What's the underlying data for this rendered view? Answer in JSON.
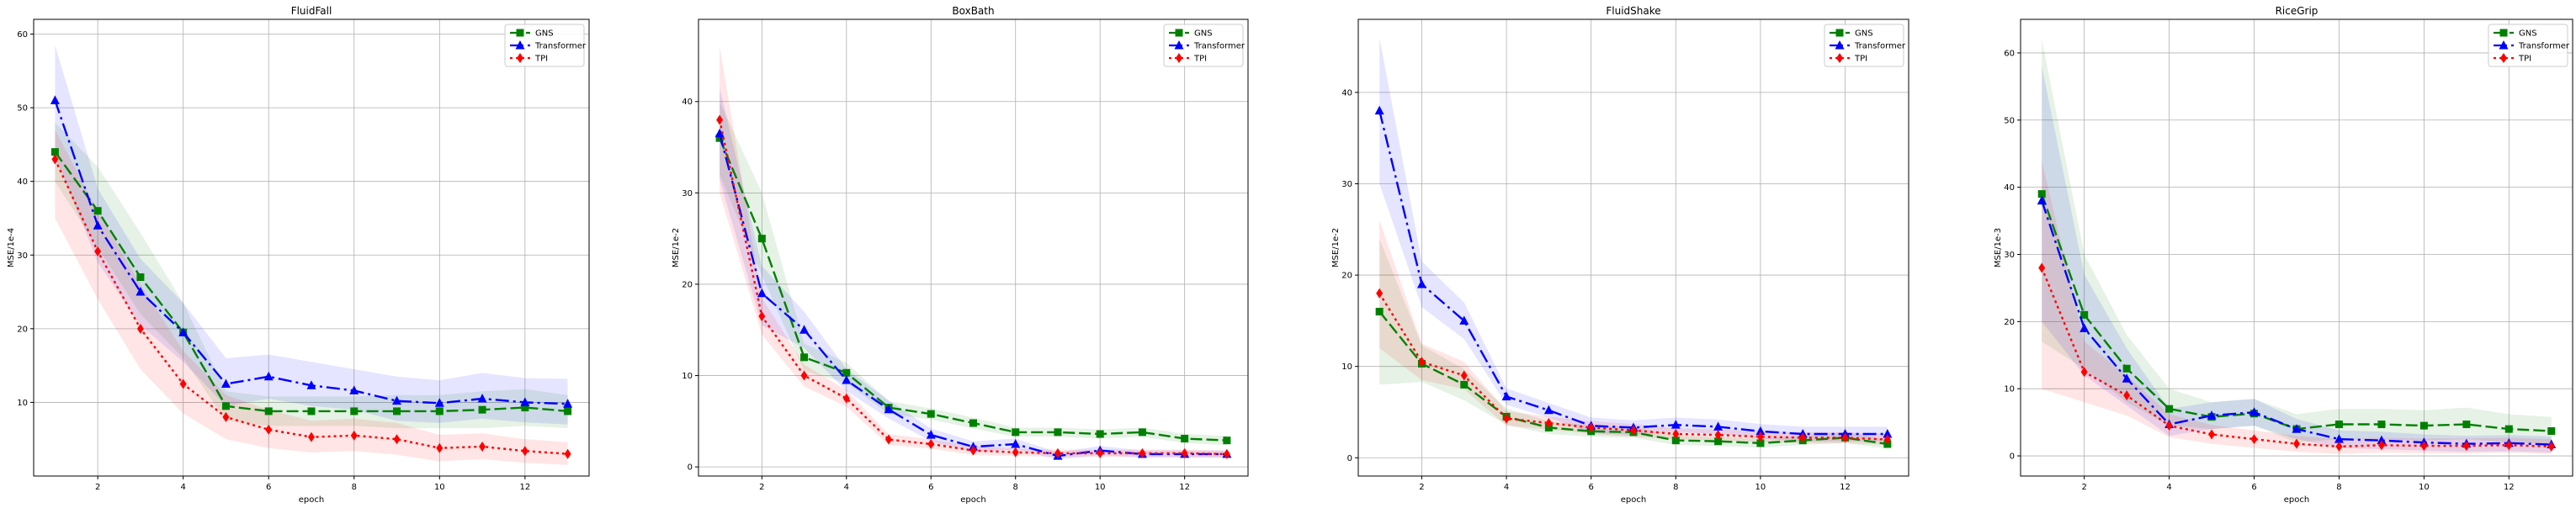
{
  "chart_data": [
    {
      "type": "line",
      "title": "FluidFall",
      "xlabel": "epoch",
      "ylabel": "MSE/1e-4",
      "xlim": [
        0.5,
        13.5
      ],
      "ylim": [
        0,
        62
      ],
      "xticks": [
        2,
        4,
        6,
        8,
        10,
        12
      ],
      "yticks": [
        10,
        20,
        30,
        40,
        50,
        60
      ],
      "grid": true,
      "legend": "top-right",
      "x": [
        1,
        2,
        3,
        4,
        5,
        6,
        7,
        8,
        9,
        10,
        11,
        12,
        13
      ],
      "series": [
        {
          "name": "GNS",
          "color": "#008000",
          "marker": "square",
          "dash": "dashed",
          "values": [
            44.0,
            36.0,
            27.0,
            19.5,
            9.5,
            8.8,
            8.8,
            8.8,
            8.8,
            8.8,
            9.0,
            9.3,
            8.8
          ],
          "lower": [
            40.0,
            31.0,
            22.0,
            16.0,
            7.5,
            6.8,
            6.8,
            6.8,
            6.5,
            6.5,
            6.5,
            6.8,
            6.5
          ],
          "upper": [
            48.0,
            42.0,
            33.0,
            23.5,
            11.5,
            10.8,
            10.8,
            10.8,
            11.0,
            11.0,
            11.5,
            11.8,
            11.0
          ]
        },
        {
          "name": "Transformer",
          "color": "#0000ff",
          "marker": "triangle",
          "dash": "dashdot",
          "values": [
            51.0,
            34.0,
            25.0,
            19.5,
            12.5,
            13.5,
            12.3,
            11.6,
            10.2,
            9.9,
            10.5,
            10.0,
            9.8
          ],
          "lower": [
            43.5,
            29.0,
            20.5,
            15.5,
            9.5,
            10.5,
            9.5,
            9.0,
            7.5,
            7.2,
            7.8,
            7.3,
            7.0
          ],
          "upper": [
            58.5,
            39.0,
            29.5,
            23.5,
            16.0,
            16.5,
            15.5,
            14.5,
            13.5,
            13.0,
            14.0,
            13.3,
            13.2
          ]
        },
        {
          "name": "TPI",
          "color": "#ff0000",
          "marker": "diamond",
          "dash": "dotted",
          "values": [
            43.0,
            30.5,
            20.0,
            12.5,
            8.0,
            6.3,
            5.3,
            5.5,
            5.0,
            3.8,
            4.0,
            3.4,
            3.0
          ],
          "lower": [
            35.0,
            24.0,
            14.5,
            8.5,
            5.0,
            3.8,
            3.2,
            3.4,
            2.9,
            2.0,
            2.3,
            1.8,
            1.5
          ],
          "upper": [
            47.0,
            36.0,
            26.0,
            17.0,
            11.0,
            9.0,
            7.5,
            7.8,
            7.2,
            5.6,
            5.8,
            5.0,
            4.6
          ]
        }
      ]
    },
    {
      "type": "line",
      "title": "BoxBath",
      "xlabel": "epoch",
      "ylabel": "MSE/1e-2",
      "xlim": [
        0.5,
        13.5
      ],
      "ylim": [
        -1,
        49
      ],
      "xticks": [
        2,
        4,
        6,
        8,
        10,
        12
      ],
      "yticks": [
        0,
        10,
        20,
        30,
        40
      ],
      "grid": true,
      "legend": "top-right",
      "x": [
        1,
        2,
        3,
        4,
        5,
        6,
        7,
        8,
        9,
        10,
        11,
        12,
        13
      ],
      "series": [
        {
          "name": "GNS",
          "color": "#008000",
          "marker": "square",
          "dash": "dashed",
          "values": [
            36.0,
            25.0,
            12.0,
            10.3,
            6.5,
            5.8,
            4.8,
            3.8,
            3.8,
            3.6,
            3.8,
            3.1,
            2.9
          ],
          "lower": [
            32.0,
            21.0,
            10.5,
            9.2,
            5.8,
            5.2,
            4.2,
            3.3,
            3.3,
            3.1,
            3.3,
            2.6,
            2.4
          ],
          "upper": [
            40.0,
            30.0,
            13.5,
            11.4,
            7.2,
            6.4,
            5.4,
            4.3,
            4.3,
            4.1,
            4.3,
            3.6,
            3.4
          ]
        },
        {
          "name": "Transformer",
          "color": "#0000ff",
          "marker": "triangle",
          "dash": "dashdot",
          "values": [
            36.5,
            19.0,
            15.0,
            9.5,
            6.3,
            3.5,
            2.2,
            2.5,
            1.2,
            1.8,
            1.4,
            1.4,
            1.4
          ],
          "lower": [
            31.5,
            15.5,
            13.0,
            8.3,
            5.3,
            2.8,
            1.6,
            1.9,
            0.8,
            1.3,
            1.0,
            1.0,
            1.0
          ],
          "upper": [
            41.5,
            22.0,
            17.0,
            10.7,
            7.3,
            4.2,
            2.8,
            3.1,
            1.6,
            2.3,
            1.8,
            1.8,
            1.8
          ]
        },
        {
          "name": "TPI",
          "color": "#ff0000",
          "marker": "diamond",
          "dash": "dotted",
          "values": [
            38.0,
            16.5,
            10.0,
            7.5,
            3.0,
            2.5,
            1.8,
            1.6,
            1.5,
            1.5,
            1.5,
            1.5,
            1.4
          ],
          "lower": [
            30.0,
            14.5,
            8.8,
            6.6,
            2.4,
            2.0,
            1.3,
            1.2,
            1.1,
            1.1,
            1.1,
            1.1,
            1.0
          ],
          "upper": [
            46.0,
            18.5,
            11.2,
            8.4,
            3.6,
            3.0,
            2.3,
            2.0,
            1.9,
            1.9,
            1.9,
            1.9,
            1.8
          ]
        }
      ]
    },
    {
      "type": "line",
      "title": "FluidShake",
      "xlabel": "epoch",
      "ylabel": "MSE/1e-2",
      "xlim": [
        0.5,
        13.5
      ],
      "ylim": [
        -2,
        48
      ],
      "xticks": [
        2,
        4,
        6,
        8,
        10,
        12
      ],
      "yticks": [
        0,
        10,
        20,
        30,
        40
      ],
      "grid": true,
      "legend": "top-right",
      "x": [
        1,
        2,
        3,
        4,
        5,
        6,
        7,
        8,
        9,
        10,
        11,
        12,
        13
      ],
      "series": [
        {
          "name": "GNS",
          "color": "#008000",
          "marker": "square",
          "dash": "dashed",
          "values": [
            16.0,
            10.3,
            8.0,
            4.5,
            3.3,
            2.9,
            2.8,
            1.9,
            1.8,
            1.6,
            1.9,
            2.2,
            1.5
          ],
          "lower": [
            8.0,
            8.3,
            6.3,
            3.6,
            2.6,
            2.3,
            2.2,
            1.4,
            1.3,
            1.1,
            1.4,
            1.6,
            1.0
          ],
          "upper": [
            24.0,
            12.3,
            9.7,
            5.4,
            4.0,
            3.5,
            3.4,
            2.4,
            2.3,
            2.1,
            2.4,
            2.8,
            2.0
          ]
        },
        {
          "name": "Transformer",
          "color": "#0000ff",
          "marker": "triangle",
          "dash": "dashdot",
          "values": [
            38.0,
            19.0,
            15.0,
            6.7,
            5.2,
            3.5,
            3.3,
            3.6,
            3.4,
            2.9,
            2.6,
            2.6,
            2.6
          ],
          "lower": [
            30.0,
            16.5,
            13.0,
            5.8,
            4.4,
            2.7,
            2.5,
            2.8,
            2.6,
            2.1,
            1.8,
            1.8,
            1.8
          ],
          "upper": [
            46.0,
            21.5,
            17.0,
            7.6,
            6.0,
            4.4,
            4.1,
            4.4,
            4.2,
            3.7,
            3.4,
            3.4,
            3.4
          ]
        },
        {
          "name": "TPI",
          "color": "#ff0000",
          "marker": "diamond",
          "dash": "dotted",
          "values": [
            18.0,
            10.5,
            9.0,
            4.3,
            3.8,
            3.3,
            3.0,
            2.6,
            2.5,
            2.3,
            2.2,
            2.2,
            2.0
          ],
          "lower": [
            12.0,
            8.5,
            7.5,
            3.5,
            3.1,
            2.6,
            2.3,
            2.0,
            1.9,
            1.7,
            1.6,
            1.6,
            1.4
          ],
          "upper": [
            26.0,
            12.5,
            10.5,
            5.1,
            4.5,
            4.0,
            3.7,
            3.2,
            3.1,
            2.9,
            2.8,
            2.8,
            2.6
          ]
        }
      ]
    },
    {
      "type": "line",
      "title": "RiceGrip",
      "xlabel": "epoch",
      "ylabel": "MSE/1e-3",
      "xlim": [
        0.5,
        13.5
      ],
      "ylim": [
        -3,
        65
      ],
      "xticks": [
        2,
        4,
        6,
        8,
        10,
        12
      ],
      "yticks": [
        0,
        10,
        20,
        30,
        40,
        50,
        60
      ],
      "grid": true,
      "legend": "top-right",
      "x": [
        1,
        2,
        3,
        4,
        5,
        6,
        7,
        8,
        9,
        10,
        11,
        12,
        13
      ],
      "series": [
        {
          "name": "GNS",
          "color": "#008000",
          "marker": "square",
          "dash": "dashed",
          "values": [
            39.0,
            21.0,
            13.0,
            7.0,
            5.8,
            6.3,
            4.0,
            4.7,
            4.7,
            4.5,
            4.7,
            4.0,
            3.7
          ],
          "lower": [
            17.0,
            13.0,
            8.0,
            4.5,
            4.0,
            4.5,
            2.0,
            2.5,
            2.5,
            2.3,
            2.5,
            2.0,
            1.8
          ],
          "upper": [
            62.0,
            30.0,
            18.0,
            10.0,
            8.0,
            8.5,
            6.2,
            7.0,
            7.0,
            6.8,
            7.2,
            6.2,
            5.8
          ]
        },
        {
          "name": "Transformer",
          "color": "#0000ff",
          "marker": "triangle",
          "dash": "dashdot",
          "values": [
            38.0,
            19.0,
            11.5,
            4.7,
            6.0,
            6.5,
            4.0,
            2.5,
            2.3,
            2.0,
            1.8,
            1.9,
            1.7
          ],
          "lower": [
            20.0,
            12.0,
            7.5,
            3.0,
            4.0,
            4.5,
            2.5,
            1.2,
            1.0,
            0.8,
            0.6,
            0.7,
            0.5
          ],
          "upper": [
            58.0,
            27.0,
            16.0,
            7.0,
            8.0,
            8.5,
            5.5,
            3.8,
            3.6,
            3.2,
            3.0,
            3.1,
            2.9
          ]
        },
        {
          "name": "TPI",
          "color": "#ff0000",
          "marker": "diamond",
          "dash": "dotted",
          "values": [
            28.0,
            12.5,
            9.0,
            4.5,
            3.2,
            2.5,
            1.8,
            1.4,
            1.6,
            1.5,
            1.5,
            1.6,
            1.4
          ],
          "lower": [
            10.0,
            8.0,
            6.0,
            2.8,
            1.8,
            1.2,
            0.6,
            0.3,
            0.5,
            0.4,
            0.4,
            0.5,
            0.3
          ],
          "upper": [
            44.0,
            17.0,
            12.0,
            6.2,
            4.6,
            3.8,
            3.0,
            2.5,
            2.7,
            2.6,
            2.6,
            2.7,
            2.5
          ]
        }
      ]
    }
  ]
}
